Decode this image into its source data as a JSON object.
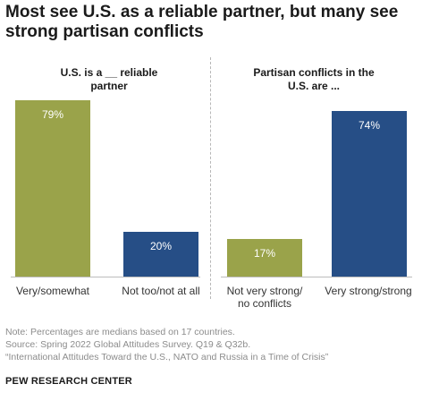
{
  "title": "Most see U.S. as a reliable partner, but many see strong partisan conflicts",
  "colors": {
    "olive": "#9aa34a",
    "navy": "#264e86"
  },
  "chart_data": [
    {
      "type": "bar",
      "title": "U.S. is a __ reliable partner",
      "categories": [
        "Very/somewhat",
        "Not too/not at all"
      ],
      "values": [
        79,
        20
      ],
      "value_labels": [
        "79%",
        "20%"
      ],
      "colors": [
        "#9aa34a",
        "#264e86"
      ],
      "ylim": [
        0,
        100
      ],
      "grid": false
    },
    {
      "type": "bar",
      "title": "Partisan conflicts in the U.S. are ...",
      "categories": [
        "Not very strong/ no conflicts",
        "Very strong/strong"
      ],
      "values": [
        17,
        74
      ],
      "value_labels": [
        "17%",
        "74%"
      ],
      "colors": [
        "#9aa34a",
        "#264e86"
      ],
      "ylim": [
        0,
        100
      ],
      "grid": false
    }
  ],
  "notes": {
    "note": "Note: Percentages are medians based on 17 countries.",
    "source": "Source: Spring 2022 Global Attitudes Survey. Q19 & Q32b.",
    "report": "“International Attitudes Toward the U.S., NATO and Russia in a Time of Crisis”"
  },
  "org": "PEW RESEARCH CENTER"
}
